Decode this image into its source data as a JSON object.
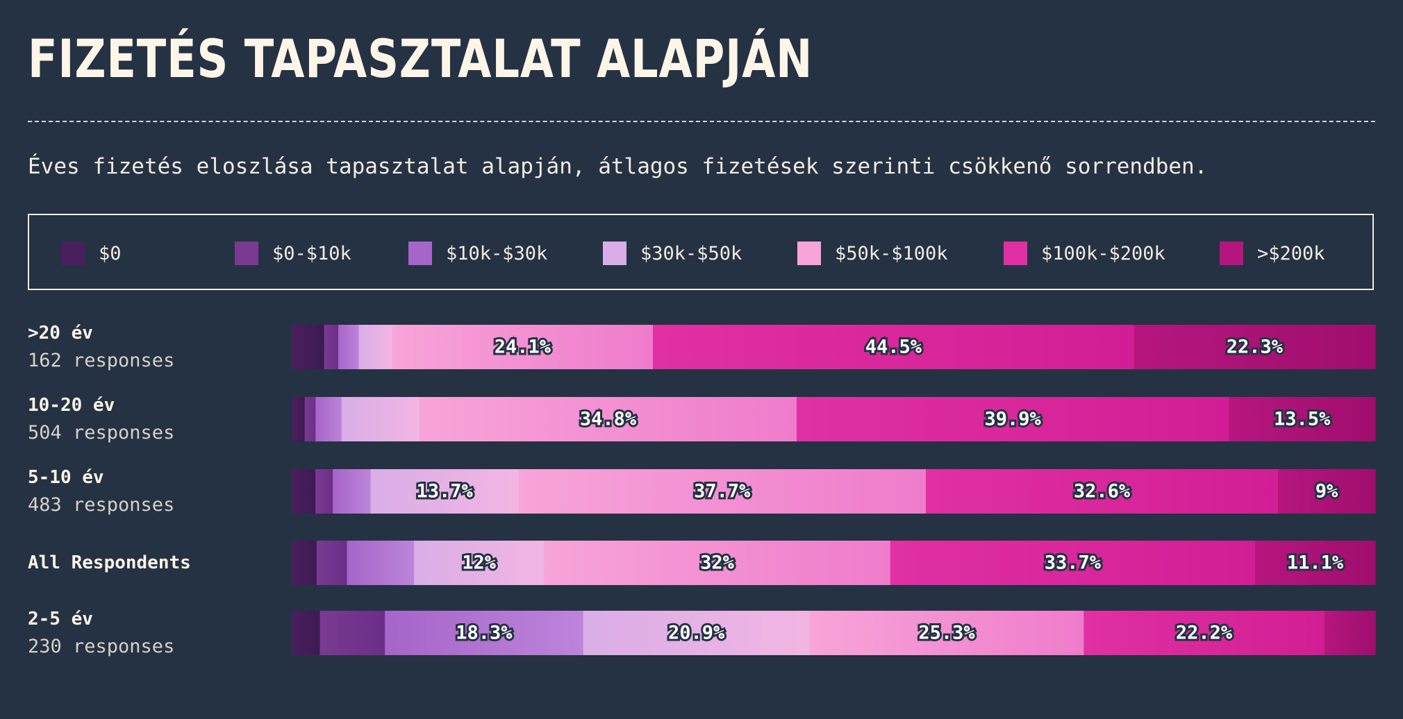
{
  "title": "FIZETÉS TAPASZTALAT ALAPJÁN",
  "subtitle": "Éves fizetés eloszlása tapasztalat alapján, átlagos fizetések szerinti csökkenő sorrendben.",
  "chart_data": {
    "type": "bar",
    "orientation": "horizontal",
    "stacked": true,
    "normalized_percent": true,
    "legend_position": "top",
    "categories": [
      ">20 év",
      "10-20 év",
      "5-10 év",
      "All Respondents",
      "2-5 év"
    ],
    "response_counts": [
      "162 responses",
      "504 responses",
      "483 responses",
      "",
      "230 responses"
    ],
    "series": [
      {
        "name": "$0",
        "color": "#4a1f5e",
        "color_end": "#3d1a52",
        "values": [
          3.0,
          1.2,
          2.2,
          2.3,
          2.6
        ]
      },
      {
        "name": "$0-$10k",
        "color": "#7a3a92",
        "color_end": "#6b2e86",
        "values": [
          1.3,
          1.0,
          1.6,
          2.8,
          6.0
        ]
      },
      {
        "name": "$10k-$30k",
        "color": "#a665c8",
        "color_end": "#bd84da",
        "values": [
          1.9,
          2.4,
          3.5,
          6.2,
          18.3
        ]
      },
      {
        "name": "$30k-$50k",
        "color": "#d9aee6",
        "color_end": "#f2b5e3",
        "values": [
          3.1,
          7.2,
          13.7,
          12.0,
          20.9
        ]
      },
      {
        "name": "$50k-$100k",
        "color": "#f7a4d9",
        "color_end": "#ef7ccb",
        "values": [
          24.1,
          34.8,
          37.7,
          32.0,
          25.3
        ]
      },
      {
        "name": "$100k-$200k",
        "color": "#e030a3",
        "color_end": "#d21e94",
        "values": [
          44.5,
          39.9,
          32.6,
          33.7,
          22.2
        ]
      },
      {
        "name": ">$200k",
        "color": "#b5167e",
        "color_end": "#a00e6e",
        "values": [
          22.3,
          13.5,
          9.0,
          11.1,
          4.7
        ]
      }
    ],
    "data_labels": [
      [
        null,
        null,
        null,
        null,
        "24.1%",
        "44.5%",
        "22.3%"
      ],
      [
        null,
        null,
        null,
        null,
        "34.8%",
        "39.9%",
        "13.5%"
      ],
      [
        null,
        null,
        null,
        "13.7%",
        "37.7%",
        "32.6%",
        "9%"
      ],
      [
        null,
        null,
        null,
        "12%",
        "32%",
        "33.7%",
        "11.1%"
      ],
      [
        null,
        null,
        "18.3%",
        "20.9%",
        "25.3%",
        "22.2%",
        null
      ]
    ]
  }
}
